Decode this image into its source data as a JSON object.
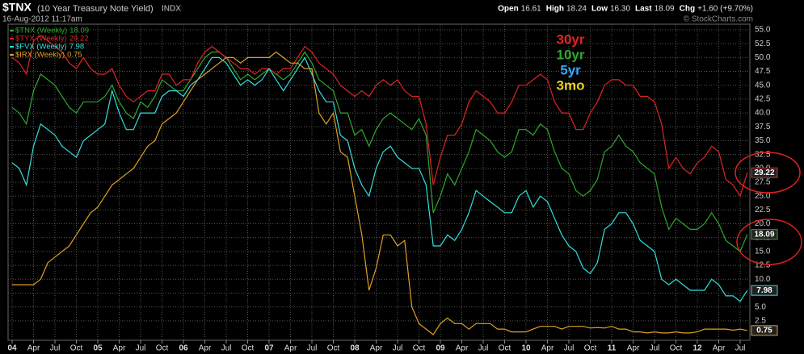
{
  "header": {
    "symbol": "$TNX",
    "name": "(10 Year Treasury Note Yield)",
    "exchange": "INDX",
    "timestamp": "16-Aug-2012 11:17am",
    "watermark": "© StockCharts.com",
    "quote": [
      {
        "label": "Open",
        "value": "16.61"
      },
      {
        "label": "High",
        "value": "18.24"
      },
      {
        "label": "Low",
        "value": "16.30"
      },
      {
        "label": "Last",
        "value": "18.09"
      },
      {
        "label": "Chg",
        "value": "+1.60 (+9.70%)"
      }
    ]
  },
  "chart_data": {
    "type": "line",
    "x": [
      "2004-01",
      "2004-02",
      "2004-03",
      "2004-04",
      "2004-05",
      "2004-06",
      "2004-07",
      "2004-08",
      "2004-09",
      "2004-10",
      "2004-11",
      "2004-12",
      "2005-01",
      "2005-02",
      "2005-03",
      "2005-04",
      "2005-05",
      "2005-06",
      "2005-07",
      "2005-08",
      "2005-09",
      "2005-10",
      "2005-11",
      "2005-12",
      "2006-01",
      "2006-02",
      "2006-03",
      "2006-04",
      "2006-05",
      "2006-06",
      "2006-07",
      "2006-08",
      "2006-09",
      "2006-10",
      "2006-11",
      "2006-12",
      "2007-01",
      "2007-02",
      "2007-03",
      "2007-04",
      "2007-05",
      "2007-06",
      "2007-07",
      "2007-08",
      "2007-09",
      "2007-10",
      "2007-11",
      "2007-12",
      "2008-01",
      "2008-02",
      "2008-03",
      "2008-04",
      "2008-05",
      "2008-06",
      "2008-07",
      "2008-08",
      "2008-09",
      "2008-10",
      "2008-11",
      "2008-12",
      "2009-01",
      "2009-02",
      "2009-03",
      "2009-04",
      "2009-05",
      "2009-06",
      "2009-07",
      "2009-08",
      "2009-09",
      "2009-10",
      "2009-11",
      "2009-12",
      "2010-01",
      "2010-02",
      "2010-03",
      "2010-04",
      "2010-05",
      "2010-06",
      "2010-07",
      "2010-08",
      "2010-09",
      "2010-10",
      "2010-11",
      "2010-12",
      "2011-01",
      "2011-02",
      "2011-03",
      "2011-04",
      "2011-05",
      "2011-06",
      "2011-07",
      "2011-08",
      "2011-09",
      "2011-10",
      "2011-11",
      "2011-12",
      "2012-01",
      "2012-02",
      "2012-03",
      "2012-04",
      "2012-05",
      "2012-06",
      "2012-07",
      "2012-08"
    ],
    "series": [
      {
        "name": "$TNX (Weekly)",
        "color": "#2fa82f",
        "values": [
          41,
          40,
          38,
          44,
          47,
          46,
          45,
          43,
          41,
          40,
          42,
          42,
          42,
          43,
          45,
          42,
          40,
          39,
          42,
          41,
          43,
          46,
          45,
          44,
          44,
          46,
          48,
          50,
          51,
          51,
          50,
          48,
          46,
          47,
          46,
          47,
          48,
          47,
          46,
          47,
          49,
          51,
          49,
          46,
          45,
          44,
          40,
          40,
          36,
          37,
          34,
          37,
          39,
          40,
          39,
          38,
          37,
          39,
          36,
          22,
          25,
          29,
          27,
          30,
          33,
          37,
          36,
          35,
          33,
          32,
          33,
          37,
          37,
          36,
          38,
          37,
          33,
          30,
          29,
          26,
          25,
          26,
          28,
          33,
          34,
          36,
          34,
          33,
          31,
          30,
          29,
          23,
          19,
          21,
          20,
          19,
          19,
          20,
          22,
          20,
          17,
          16,
          15,
          18.09
        ]
      },
      {
        "name": "$TYX (Weekly)",
        "color": "#e02424",
        "values": [
          50,
          49,
          47,
          53,
          54,
          53,
          52,
          51,
          49,
          48,
          50,
          48,
          47,
          47,
          48,
          45,
          43,
          42,
          43,
          44,
          44,
          47,
          47,
          45,
          46,
          46,
          49,
          51,
          52,
          51,
          50,
          49,
          48,
          48,
          47,
          48,
          48,
          47,
          48,
          48,
          50,
          52,
          51,
          49,
          48,
          47,
          45,
          44,
          43,
          44,
          43,
          45,
          46,
          45,
          46,
          44,
          43,
          43,
          38,
          27,
          32,
          36,
          36,
          38,
          42,
          44,
          43,
          42,
          40,
          40,
          42,
          45,
          45,
          46,
          47,
          46,
          42,
          40,
          40,
          37,
          37,
          40,
          42,
          45,
          46,
          46,
          45,
          45,
          43,
          43,
          42,
          38,
          30,
          32,
          30,
          29,
          31,
          32,
          34,
          33,
          28,
          27,
          25,
          29.22
        ]
      },
      {
        "name": "$FVX (Weekly)",
        "color": "#33dede",
        "values": [
          31,
          30,
          27,
          34,
          38,
          37,
          36,
          34,
          33,
          32,
          35,
          36,
          37,
          38,
          44,
          40,
          37,
          37,
          40,
          40,
          40,
          43,
          44,
          44,
          43,
          45,
          46,
          48,
          50,
          50,
          49,
          47,
          45,
          46,
          45,
          46,
          48,
          46,
          44,
          46,
          48,
          50,
          47,
          44,
          42,
          42,
          36,
          35,
          30,
          27,
          25,
          30,
          33,
          34,
          32,
          31,
          30,
          30,
          27,
          16,
          16,
          18,
          17,
          19,
          22,
          26,
          25,
          24,
          23,
          22,
          22,
          25,
          26,
          23,
          25,
          24,
          21,
          18,
          16,
          15,
          12,
          11,
          13,
          19,
          20,
          22,
          22,
          20,
          17,
          16,
          15,
          10,
          9,
          10,
          9,
          8,
          8,
          8,
          10,
          9,
          7,
          7,
          6,
          7.98
        ]
      },
      {
        "name": "$IRX (Weekly)",
        "color": "#e0a028",
        "values": [
          9,
          9,
          9,
          9,
          10,
          13,
          14,
          15,
          16,
          18,
          20,
          22,
          23,
          25,
          27,
          28,
          29,
          30,
          32,
          34,
          35,
          38,
          39,
          40,
          42,
          44,
          46,
          47,
          48,
          49,
          50,
          50,
          49,
          50,
          50,
          50,
          50,
          51,
          50,
          49,
          49,
          48,
          48,
          40,
          38,
          40,
          33,
          32,
          25,
          18,
          8,
          12,
          18,
          18,
          16,
          17,
          5,
          2,
          1,
          0,
          2,
          3,
          2,
          2,
          1,
          2,
          2,
          2,
          1,
          1,
          0.5,
          0.5,
          0.5,
          1,
          1.5,
          1.5,
          1.5,
          1,
          1.5,
          1.5,
          1.5,
          1.2,
          1.3,
          1.2,
          1.5,
          1,
          1,
          0.5,
          0.5,
          0.3,
          0.5,
          0.3,
          0.3,
          0.5,
          0.3,
          0.3,
          0.5,
          1,
          1,
          1,
          1,
          0.8,
          1,
          0.75
        ]
      }
    ],
    "ylim": [
      0,
      55
    ],
    "yticks": [
      {
        "value": 2.5,
        "label": "2.5"
      },
      {
        "value": 5,
        "label": "5.0"
      },
      {
        "value": 7.5,
        "label": "7.5"
      },
      {
        "value": 10,
        "label": "10.0"
      },
      {
        "value": 12.5,
        "label": "12.5"
      },
      {
        "value": 15,
        "label": "15.0"
      },
      {
        "value": 17.5,
        "label": "17.5"
      },
      {
        "value": 20,
        "label": "20.0"
      },
      {
        "value": 22.5,
        "label": "22.5"
      },
      {
        "value": 25,
        "label": "25.0"
      },
      {
        "value": 27.5,
        "label": "27.5"
      },
      {
        "value": 30,
        "label": "30.0"
      },
      {
        "value": 32.5,
        "label": "32.5"
      },
      {
        "value": 35,
        "label": "35.0"
      },
      {
        "value": 37.5,
        "label": "37.5"
      },
      {
        "value": 40,
        "label": "40.0"
      },
      {
        "value": 42.5,
        "label": "42.5"
      },
      {
        "value": 45,
        "label": "45.0"
      },
      {
        "value": 47.5,
        "label": "47.5"
      },
      {
        "value": 50,
        "label": "50.0"
      },
      {
        "value": 52.5,
        "label": "52.5"
      },
      {
        "value": 55,
        "label": "55.0"
      }
    ],
    "xticks": [
      {
        "value": "2004-01",
        "label": "04"
      },
      {
        "value": "2004-04",
        "label": "Apr"
      },
      {
        "value": "2004-07",
        "label": "Jul"
      },
      {
        "value": "2004-10",
        "label": "Oct"
      },
      {
        "value": "2005-01",
        "label": "05"
      },
      {
        "value": "2005-04",
        "label": "Apr"
      },
      {
        "value": "2005-07",
        "label": "Jul"
      },
      {
        "value": "2005-10",
        "label": "Oct"
      },
      {
        "value": "2006-01",
        "label": "06"
      },
      {
        "value": "2006-04",
        "label": "Apr"
      },
      {
        "value": "2006-07",
        "label": "Jul"
      },
      {
        "value": "2006-10",
        "label": "Oct"
      },
      {
        "value": "2007-01",
        "label": "07"
      },
      {
        "value": "2007-04",
        "label": "Apr"
      },
      {
        "value": "2007-07",
        "label": "Jul"
      },
      {
        "value": "2007-10",
        "label": "Oct"
      },
      {
        "value": "2008-01",
        "label": "08"
      },
      {
        "value": "2008-04",
        "label": "Apr"
      },
      {
        "value": "2008-07",
        "label": "Jul"
      },
      {
        "value": "2008-10",
        "label": "Oct"
      },
      {
        "value": "2009-01",
        "label": "09"
      },
      {
        "value": "2009-04",
        "label": "Apr"
      },
      {
        "value": "2009-07",
        "label": "Jul"
      },
      {
        "value": "2009-10",
        "label": "Oct"
      },
      {
        "value": "2010-01",
        "label": "10"
      },
      {
        "value": "2010-04",
        "label": "Apr"
      },
      {
        "value": "2010-07",
        "label": "Jul"
      },
      {
        "value": "2010-10",
        "label": "Oct"
      },
      {
        "value": "2011-01",
        "label": "11"
      },
      {
        "value": "2011-04",
        "label": "Apr"
      },
      {
        "value": "2011-07",
        "label": "Jul"
      },
      {
        "value": "2011-10",
        "label": "Oct"
      },
      {
        "value": "2012-01",
        "label": "12"
      },
      {
        "value": "2012-04",
        "label": "Apr"
      },
      {
        "value": "2012-07",
        "label": "Jul"
      }
    ],
    "grid": true,
    "annotations": [
      {
        "text": "30yr",
        "color": "#e02424"
      },
      {
        "text": "10yr",
        "color": "#2fa82f"
      },
      {
        "text": "5yr",
        "color": "#33aaff"
      },
      {
        "text": "3mo",
        "color": "#e8d020"
      }
    ]
  }
}
